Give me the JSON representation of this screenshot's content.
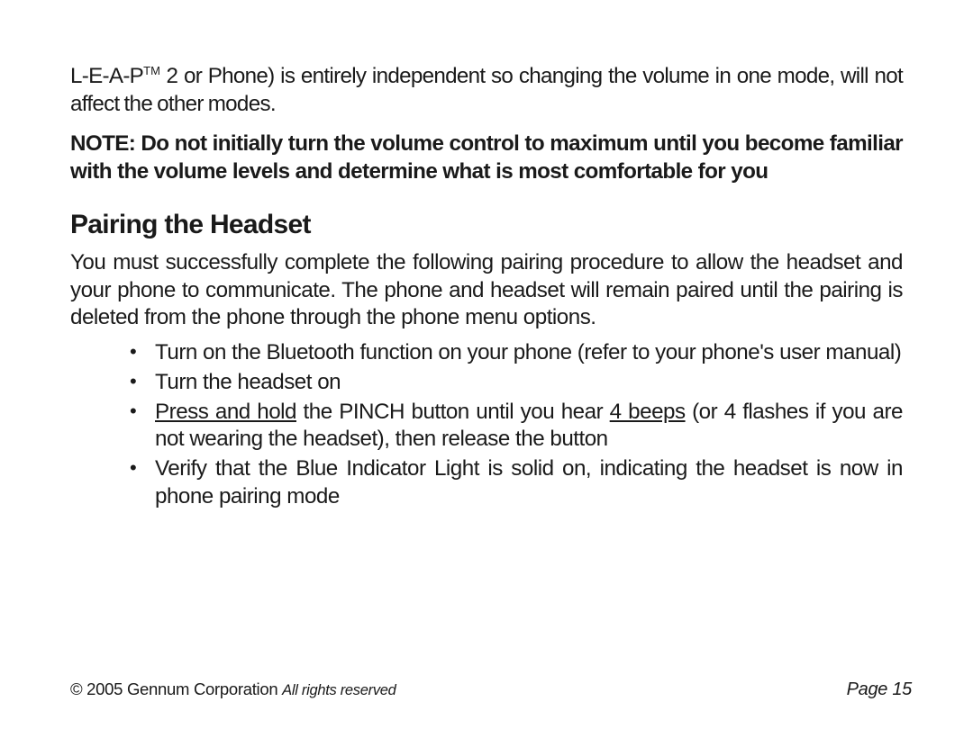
{
  "colors": {
    "background": "#ffffff",
    "text": "#1a1a1a"
  },
  "typography": {
    "body_fontsize_pt": 18,
    "heading_fontsize_pt": 22,
    "footer_fontsize_pt": 14
  },
  "intro": {
    "leap": "L-E-A-P",
    "tm": "TM",
    "rest": " 2 or Phone) is entirely independent so changing the volume in one mode, will not affect the other modes."
  },
  "note_text": "NOTE:  Do not initially turn the volume control to maximum until you become familiar with the volume levels and determine what is most comfortable for you",
  "section_title": "Pairing the Headset",
  "pairing_para": "You must successfully complete the following pairing procedure to allow the headset and your phone to communicate.  The phone and headset will remain paired until the pairing is deleted from the phone through the phone menu options.",
  "bullets": [
    {
      "parts": [
        {
          "text": "Turn on the Bluetooth function on your phone (refer to your phone's user manual)"
        }
      ]
    },
    {
      "parts": [
        {
          "text": "Turn the headset on"
        }
      ]
    },
    {
      "parts": [
        {
          "text": "Press and hold",
          "underline": true
        },
        {
          "text": " the PINCH button until you hear "
        },
        {
          "text": "4 beeps",
          "underline": true
        },
        {
          "text": " (or 4 flashes if you are not wearing the headset), then release the button"
        }
      ]
    },
    {
      "parts": [
        {
          "text": "Verify that the Blue Indicator Light is solid on, indicating the headset is now in phone pairing mode"
        }
      ]
    }
  ],
  "footer": {
    "copyright": "© 2005 Gennum Corporation",
    "rights": "All rights reserved",
    "page_label": "Page 15"
  }
}
